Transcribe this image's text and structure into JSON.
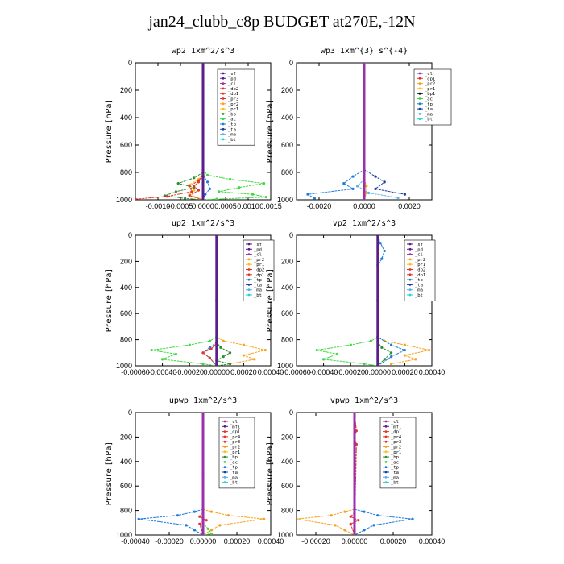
{
  "title": "jan24_clubb_c8p  BUDGET at270E,-12N",
  "colors": {
    "_sf": "#5a1e8c",
    "_pd": "#5a1e8c",
    "_cl": "#9b2fae",
    "_mfl": "#5a1e8c",
    "_dp2": "#e8312a",
    "_dp1": "#e8312a",
    "_pr4": "#e8312a",
    "_pr3": "#e8312a",
    "_pr2": "#f7a21b",
    "_pr1": "#f7c21b",
    "_bp": "#2f8f2f",
    "_ac": "#3ed93e",
    "_tp": "#1e7bd8",
    "_ta": "#1a3fa0",
    "_ma": "#5ab0e8",
    "_bt": "#2ad0d0"
  },
  "chart_data": [
    {
      "type": "line",
      "title": "wp2  1xm^2/s^3",
      "ylabel": "Pressure [hPa]",
      "xlim": [
        -0.0015,
        0.0015
      ],
      "ylim": [
        1000,
        0
      ],
      "xticks": [
        -0.001,
        -0.0005,
        0,
        0.0005,
        0.001,
        0.0015
      ],
      "xtick_labels": [
        "-0.0010",
        "-0.0005",
        "0.0000",
        "0.0005",
        "0.0010",
        "0.0015"
      ],
      "yticks": [
        0,
        200,
        400,
        600,
        800,
        1000
      ],
      "legend": [
        "_sf",
        "_pd",
        "_cl",
        "_dp2",
        "_dp1",
        "_pr3",
        "_pr2",
        "_pr1",
        "_bp",
        "_ac",
        "_tp",
        "_ta",
        "_ma",
        "_bt"
      ],
      "series": [
        {
          "name": "_ac",
          "x": [
            0,
            0,
            0.0001,
            0.0006,
            0.00135,
            0.0008,
            0.00035,
            0.0011,
            0.0014,
            0.0003,
            0
          ],
          "y": [
            0,
            780,
            820,
            850,
            880,
            910,
            940,
            960,
            980,
            995,
            1000
          ]
        },
        {
          "name": "_bp",
          "x": [
            0,
            0,
            -0.0002,
            -0.00055,
            -0.0002,
            -0.0006,
            -0.00085,
            -0.0004,
            0
          ],
          "y": [
            0,
            800,
            840,
            880,
            910,
            940,
            970,
            990,
            1000
          ]
        },
        {
          "name": "_pr1",
          "x": [
            0,
            0,
            -0.0001,
            -0.0003,
            -0.0002,
            -0.0003,
            0
          ],
          "y": [
            0,
            810,
            850,
            890,
            930,
            960,
            1000
          ]
        },
        {
          "name": "_dp1",
          "x": [
            0,
            0,
            -0.0001,
            -0.0003,
            -0.00025,
            -0.0008,
            -0.0015
          ],
          "y": [
            0,
            820,
            860,
            900,
            940,
            975,
            995
          ]
        },
        {
          "name": "_dp2",
          "x": [
            0,
            0,
            -0.0001,
            -0.0002,
            -0.0001,
            -0.0003,
            0
          ],
          "y": [
            0,
            830,
            870,
            900,
            930,
            970,
            1000
          ]
        },
        {
          "name": "_tp",
          "x": [
            0,
            0,
            0.0001,
            0.00015,
            5e-05,
            0
          ],
          "y": [
            0,
            820,
            870,
            920,
            960,
            1000
          ]
        },
        {
          "name": "_sf",
          "x": [
            0,
            0,
            0,
            0
          ],
          "y": [
            0,
            500,
            800,
            1000
          ]
        }
      ]
    },
    {
      "type": "line",
      "title": "wp3  1xm^{3} s^{-4}",
      "ylabel": "Pressure [hPa]",
      "xlim": [
        -0.003,
        0.003
      ],
      "ylim": [
        1000,
        0
      ],
      "xticks": [
        -0.002,
        0,
        0.002
      ],
      "xtick_labels": [
        "-0.0020",
        "0.0000",
        "0.0020"
      ],
      "yticks": [
        0,
        200,
        400,
        600,
        800,
        1000
      ],
      "legend": [
        "_cl",
        "_dp1",
        "_pr2",
        "_pr1",
        "_bp1",
        "_ac",
        "_tp",
        "_ta",
        "_ma",
        "_bt"
      ],
      "series": [
        {
          "name": "_tp",
          "x": [
            0,
            0,
            -0.0005,
            -0.0009,
            -0.0005,
            -0.0025,
            -0.0022
          ],
          "y": [
            0,
            780,
            830,
            880,
            920,
            960,
            990
          ]
        },
        {
          "name": "_ta",
          "x": [
            0,
            0,
            0.0005,
            0.0009,
            0.0005,
            0.0018
          ],
          "y": [
            0,
            780,
            830,
            870,
            920,
            960
          ]
        },
        {
          "name": "_ma",
          "x": [
            0,
            0,
            -0.0003,
            0.0002,
            0.0015
          ],
          "y": [
            0,
            850,
            900,
            950,
            985
          ]
        },
        {
          "name": "_pr2",
          "x": [
            0,
            0,
            0.0001,
            0.0001,
            0
          ],
          "y": [
            0,
            850,
            900,
            950,
            1000
          ]
        },
        {
          "name": "_cl",
          "x": [
            0,
            0,
            0
          ],
          "y": [
            0,
            500,
            1000
          ]
        }
      ]
    },
    {
      "type": "line",
      "title": "up2  1xm^2/s^3",
      "ylabel": "Pressure [hPa]",
      "xlim": [
        -0.0006,
        0.0004
      ],
      "ylim": [
        1000,
        0
      ],
      "xticks": [
        -0.0006,
        -0.0004,
        -0.0002,
        0,
        0.0002,
        0.0004
      ],
      "xtick_labels": [
        "-0.00060",
        "-0.00040",
        "-0.00020",
        "0.00000",
        "0.00020",
        "0.00040"
      ],
      "yticks": [
        0,
        200,
        400,
        600,
        800,
        1000
      ],
      "legend": [
        "_sf",
        "_pd",
        "_cl",
        "_pr2",
        "_pr1",
        "_dp2",
        "_dp1",
        "_tp",
        "_ta",
        "_ma",
        "_bt"
      ],
      "series": [
        {
          "name": "_ac",
          "x": [
            0,
            0,
            -5e-05,
            -0.0002,
            -0.00048,
            -0.0003,
            -0.0004,
            -0.0001,
            0
          ],
          "y": [
            0,
            780,
            810,
            840,
            880,
            910,
            950,
            985,
            1000
          ]
        },
        {
          "name": "_pr2",
          "x": [
            0,
            0,
            5e-05,
            0.0002,
            0.00036,
            0.0002,
            0.00028,
            0.0001
          ],
          "y": [
            0,
            780,
            810,
            840,
            880,
            920,
            950,
            985
          ]
        },
        {
          "name": "_bp",
          "x": [
            0,
            0,
            3e-05,
            0.0001,
            5e-05,
            0,
            0.0001,
            0
          ],
          "y": [
            0,
            820,
            860,
            900,
            930,
            960,
            985,
            1000
          ]
        },
        {
          "name": "_tp",
          "x": [
            0,
            0,
            -5e-05,
            -0.0001,
            -5e-05,
            0
          ],
          "y": [
            0,
            820,
            860,
            900,
            940,
            1000
          ]
        },
        {
          "name": "_dp1",
          "x": [
            0,
            0,
            -4e-05,
            -0.0001,
            -5e-05,
            0
          ],
          "y": [
            0,
            830,
            870,
            900,
            940,
            1000
          ]
        },
        {
          "name": "_sf",
          "x": [
            0,
            0,
            0
          ],
          "y": [
            0,
            500,
            1000
          ]
        }
      ]
    },
    {
      "type": "line",
      "title": "vp2  1xm^2/s^3",
      "ylabel": "Pressure [hPa]",
      "xlim": [
        -0.0006,
        0.0004
      ],
      "ylim": [
        1000,
        0
      ],
      "xticks": [
        -0.0006,
        -0.0004,
        -0.0002,
        0,
        0.0002,
        0.0004
      ],
      "xtick_labels": [
        "-0.00060",
        "-0.00040",
        "-0.00020",
        "0.00000",
        "0.00020",
        "0.00040"
      ],
      "yticks": [
        0,
        200,
        400,
        600,
        800,
        1000
      ],
      "legend": [
        "_sf",
        "_pd",
        "_cl",
        "_pr2",
        "_pr1",
        "_dp2",
        "_dp1",
        "_tp",
        "_ta",
        "_ma",
        "_bt"
      ],
      "series": [
        {
          "name": "_ac",
          "x": [
            0,
            0,
            -5e-05,
            -0.0002,
            -0.00045,
            -0.0003,
            -0.0004,
            -0.0001,
            0
          ],
          "y": [
            0,
            780,
            810,
            840,
            880,
            910,
            950,
            985,
            1000
          ]
        },
        {
          "name": "_pr2",
          "x": [
            0,
            0,
            5e-05,
            0.0002,
            0.00038,
            0.0002,
            0.00028,
            0.0001
          ],
          "y": [
            0,
            780,
            810,
            840,
            880,
            920,
            950,
            985
          ]
        },
        {
          "name": "_tp",
          "x": [
            0,
            2e-05,
            5e-05,
            3e-05,
            0,
            0,
            0.0001,
            0.0002,
            0.0001,
            0
          ],
          "y": [
            0,
            60,
            120,
            180,
            230,
            780,
            840,
            880,
            930,
            1000
          ]
        },
        {
          "name": "_bp",
          "x": [
            0,
            0,
            3e-05,
            0.0001,
            5e-05,
            0
          ],
          "y": [
            0,
            820,
            860,
            900,
            950,
            1000
          ]
        },
        {
          "name": "_sf",
          "x": [
            0,
            0,
            0
          ],
          "y": [
            0,
            500,
            1000
          ]
        }
      ]
    },
    {
      "type": "line",
      "title": "upwp  1xm^2/s^3",
      "ylabel": "Pressure [hPa]",
      "xlim": [
        -0.0004,
        0.0004
      ],
      "ylim": [
        1000,
        0
      ],
      "xticks": [
        -0.0004,
        -0.0002,
        0,
        0.0002,
        0.0004
      ],
      "xtick_labels": [
        "-0.00040",
        "-0.00020",
        "0.00000",
        "0.00020",
        "0.00040"
      ],
      "yticks": [
        0,
        200,
        400,
        600,
        800,
        1000
      ],
      "legend": [
        "_cl",
        "_mfl",
        "_dp1",
        "_pr4",
        "_pr3",
        "_pr2",
        "_pr1",
        "_bp",
        "_ac",
        "_tp",
        "_ta",
        "_ma",
        "_bt"
      ],
      "series": [
        {
          "name": "_tp",
          "x": [
            0,
            0,
            -5e-05,
            -0.00015,
            -0.00038,
            -0.0001,
            -5e-05,
            0
          ],
          "y": [
            0,
            790,
            810,
            840,
            870,
            920,
            960,
            1000
          ]
        },
        {
          "name": "_pr2",
          "x": [
            0,
            0,
            5e-05,
            0.00015,
            0.00036,
            0.0001,
            5e-05,
            0
          ],
          "y": [
            0,
            790,
            810,
            840,
            870,
            920,
            960,
            1000
          ]
        },
        {
          "name": "_ac",
          "x": [
            0,
            0,
            3e-05,
            5e-05,
            0
          ],
          "y": [
            0,
            900,
            950,
            990,
            1000
          ]
        },
        {
          "name": "_dp1",
          "x": [
            0,
            0,
            -2e-05,
            2e-05,
            -2e-05,
            0
          ],
          "y": [
            0,
            820,
            850,
            880,
            910,
            1000
          ]
        },
        {
          "name": "_cl",
          "x": [
            0,
            0,
            0
          ],
          "y": [
            0,
            500,
            1000
          ]
        }
      ]
    },
    {
      "type": "line",
      "title": "vpwp  1xm^2/s^3",
      "ylabel": "Pressure [hPa]",
      "xlim": [
        -0.0003,
        0.0004
      ],
      "ylim": [
        1000,
        0
      ],
      "xticks": [
        -0.0002,
        0,
        0.0002,
        0.0004
      ],
      "xtick_labels": [
        "-0.00020",
        "0.00000",
        "0.00020",
        "0.00040"
      ],
      "yticks": [
        0,
        200,
        400,
        600,
        800,
        1000
      ],
      "legend": [
        "_cl",
        "_mfl",
        "_dp1",
        "_pr4",
        "_pr3",
        "_pr2",
        "_pr1",
        "_bp",
        "_ac",
        "_tp",
        "_ta",
        "_ma",
        "_bt"
      ],
      "series": [
        {
          "name": "_pr2",
          "x": [
            0,
            0,
            -5e-05,
            -0.00012,
            -0.0003,
            -0.0001,
            -5e-05,
            0
          ],
          "y": [
            0,
            790,
            810,
            840,
            870,
            920,
            960,
            1000
          ]
        },
        {
          "name": "_tp",
          "x": [
            0,
            0,
            5e-05,
            0.00012,
            0.0003,
            0.0001,
            5e-05,
            0
          ],
          "y": [
            0,
            790,
            810,
            840,
            870,
            920,
            960,
            1000
          ]
        },
        {
          "name": "_pr3",
          "x": [
            0,
            1e-05,
            0,
            1e-05,
            0
          ],
          "y": [
            0,
            150,
            200,
            260,
            1000
          ]
        },
        {
          "name": "_dp1",
          "x": [
            0,
            0,
            -2e-05,
            2e-05,
            -2e-05,
            0
          ],
          "y": [
            0,
            820,
            850,
            880,
            910,
            1000
          ]
        },
        {
          "name": "_cl",
          "x": [
            0,
            0,
            0
          ],
          "y": [
            0,
            500,
            1000
          ]
        }
      ]
    }
  ]
}
